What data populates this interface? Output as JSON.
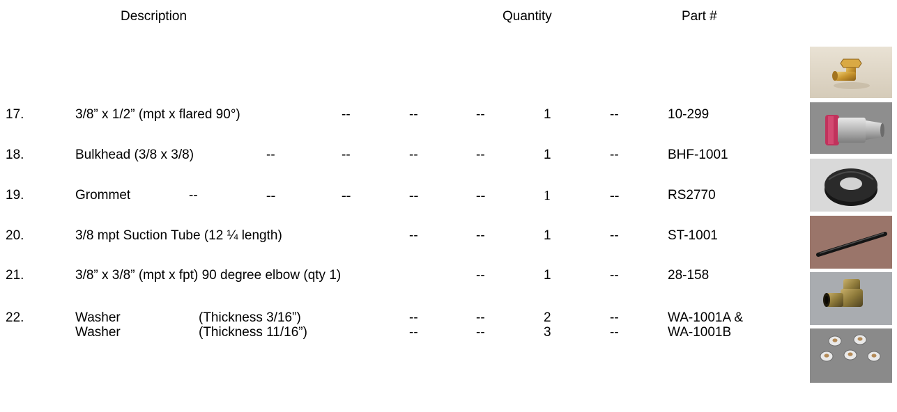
{
  "header": {
    "description": "Description",
    "quantity": "Quantity",
    "part": "Part #"
  },
  "dash": "--",
  "rows": [
    {
      "num": "17.",
      "desc": "3/8” x 1/2” (mpt x flared 90°)",
      "qty": "1",
      "part": "10-299",
      "image_icon": "brass-90-elbow-fitting-icon"
    },
    {
      "num": "18.",
      "desc": "Bulkhead (3/8 x 3/8)",
      "qty": "1",
      "part": "BHF-1001",
      "image_icon": "aluminum-bulkhead-fitting-icon"
    },
    {
      "num": "19.",
      "desc": "Grommet",
      "qty": "1",
      "part": "RS2770",
      "image_icon": "rubber-grommet-icon"
    },
    {
      "num": "20.",
      "desc": "3/8 mpt Suction Tube (12 ¼ length)",
      "qty": "1",
      "part": "ST-1001",
      "image_icon": "suction-tube-icon"
    },
    {
      "num": "21.",
      "desc": "3/8” x 3/8” (mpt x fpt) 90 degree elbow (qty 1)",
      "qty": "1",
      "part": "28-158",
      "image_icon": "brass-elbow-icon"
    },
    {
      "num": "22.",
      "desc": "Washer",
      "spec": "(Thickness 3/16”)",
      "qty": "2",
      "part": "WA-1001A &",
      "image_icon": "washers-icon"
    },
    {
      "desc": "Washer",
      "spec": "(Thickness 11/16”)",
      "qty": "3",
      "part": "WA-1001B"
    }
  ]
}
